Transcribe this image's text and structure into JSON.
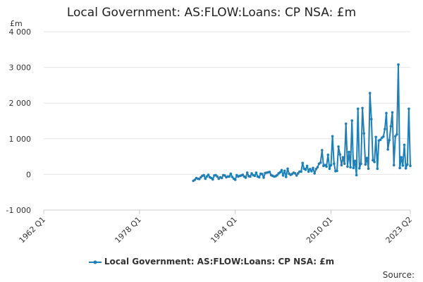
{
  "chart_data": {
    "type": "line",
    "title": "Local Government: AS:FLOW:Loans: CP NSA: £m",
    "ylabel": "£m",
    "ylim": [
      -1000,
      4000
    ],
    "yticks": [
      -1000,
      0,
      1000,
      2000,
      3000,
      4000
    ],
    "ytick_labels": [
      "-1 000",
      "0",
      "1 000",
      "2 000",
      "3 000",
      "4 000"
    ],
    "xlim": [
      1962.0,
      2023.25
    ],
    "xticks": [
      1962.0,
      1978.0,
      1994.0,
      2010.0,
      2023.25
    ],
    "xtick_labels": [
      "1962 Q1",
      "1978 Q1",
      "1994 Q1",
      "2010 Q1",
      "2023 Q2"
    ],
    "grid": "horizontal",
    "legend_position": "bottom",
    "source_label": "Source:",
    "series": [
      {
        "name": "Local Government: AS:FLOW:Loans: CP NSA: £m",
        "color": "#1f7fb6",
        "x": [
          1987.0,
          1987.25,
          1987.5,
          1987.75,
          1988.0,
          1988.25,
          1988.5,
          1988.75,
          1989.0,
          1989.25,
          1989.5,
          1989.75,
          1990.0,
          1990.25,
          1990.5,
          1990.75,
          1991.0,
          1991.25,
          1991.5,
          1991.75,
          1992.0,
          1992.25,
          1992.5,
          1992.75,
          1993.0,
          1993.25,
          1993.5,
          1993.75,
          1994.0,
          1994.25,
          1994.5,
          1994.75,
          1995.0,
          1995.25,
          1995.5,
          1995.75,
          1996.0,
          1996.25,
          1996.5,
          1996.75,
          1997.0,
          1997.25,
          1997.5,
          1997.75,
          1998.0,
          1998.25,
          1998.5,
          1998.75,
          1999.0,
          1999.25,
          1999.5,
          1999.75,
          2000.0,
          2000.25,
          2000.5,
          2000.75,
          2001.0,
          2001.25,
          2001.5,
          2001.75,
          2002.0,
          2002.25,
          2002.5,
          2002.75,
          2003.0,
          2003.25,
          2003.5,
          2003.75,
          2004.0,
          2004.25,
          2004.5,
          2004.75,
          2005.0,
          2005.25,
          2005.5,
          2005.75,
          2006.0,
          2006.25,
          2006.5,
          2006.75,
          2007.0,
          2007.25,
          2007.5,
          2007.75,
          2008.0,
          2008.25,
          2008.5,
          2008.75,
          2009.0,
          2009.25,
          2009.5,
          2009.75,
          2010.0,
          2010.25,
          2010.5,
          2010.75,
          2011.0,
          2011.25,
          2011.5,
          2011.75,
          2012.0,
          2012.25,
          2012.5,
          2012.75,
          2013.0,
          2013.25,
          2013.5,
          2013.75,
          2014.0,
          2014.25,
          2014.5,
          2014.75,
          2015.0,
          2015.25,
          2015.5,
          2015.75,
          2016.0,
          2016.25,
          2016.5,
          2016.75,
          2017.0,
          2017.25,
          2017.5,
          2017.75,
          2018.0,
          2018.25,
          2018.5,
          2018.75,
          2019.0,
          2019.25,
          2019.5,
          2019.75,
          2020.0,
          2020.25,
          2020.5,
          2020.75,
          2021.0,
          2021.25,
          2021.5,
          2021.75,
          2022.0,
          2022.25,
          2022.5,
          2022.75,
          2023.0,
          2023.25
        ],
        "y": [
          -180,
          -150,
          -100,
          -120,
          -130,
          -80,
          -40,
          -20,
          -120,
          -60,
          -10,
          -80,
          -100,
          -140,
          -30,
          -20,
          -60,
          -120,
          -80,
          -100,
          -20,
          -30,
          -80,
          -60,
          -60,
          20,
          -70,
          -120,
          -150,
          -20,
          -60,
          -40,
          -30,
          -10,
          -60,
          -90,
          50,
          -50,
          -60,
          30,
          -20,
          -40,
          50,
          -60,
          -80,
          20,
          10,
          -90,
          40,
          50,
          60,
          70,
          -20,
          -40,
          -60,
          -50,
          -20,
          30,
          60,
          120,
          -30,
          100,
          -70,
          160,
          20,
          -10,
          10,
          50,
          30,
          -30,
          30,
          80,
          80,
          320,
          160,
          130,
          240,
          80,
          150,
          90,
          180,
          30,
          150,
          200,
          300,
          330,
          680,
          240,
          260,
          220,
          550,
          160,
          260,
          1070,
          300,
          90,
          100,
          780,
          560,
          260,
          480,
          300,
          1420,
          220,
          630,
          200,
          1510,
          180,
          380,
          -20,
          1840,
          170,
          300,
          1860,
          1150,
          280,
          460,
          160,
          2280,
          1550,
          400,
          350,
          1050,
          160,
          950,
          970,
          1030,
          1060,
          1270,
          1720,
          700,
          960,
          1350,
          1740,
          260,
          1070,
          1120,
          3080,
          180,
          480,
          250,
          830,
          170,
          280,
          1840,
          240
        ]
      }
    ]
  }
}
